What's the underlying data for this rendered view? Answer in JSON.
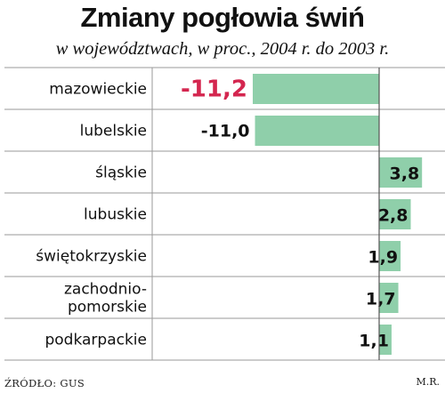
{
  "chart_data": {
    "type": "bar",
    "orientation": "horizontal",
    "title": "Zmiany pogłowia świń",
    "subtitle": "w województwach, w proc., 2004 r. do 2003 r.",
    "categories": [
      "mazowieckie",
      "lubelskie",
      "śląskie",
      "lubuskie",
      "świętokrzyskie",
      "zachodnio-pomorskie",
      "podkarpackie"
    ],
    "category_lines": [
      [
        "mazowieckie"
      ],
      [
        "lubelskie"
      ],
      [
        "śląskie"
      ],
      [
        "lubuskie"
      ],
      [
        "świętokrzyskie"
      ],
      [
        "zachodnio-",
        "pomorskie"
      ],
      [
        "podkarpackie"
      ]
    ],
    "values": [
      -11.2,
      -11.0,
      3.8,
      2.8,
      1.9,
      1.7,
      1.1
    ],
    "value_labels": [
      "-11,2",
      "-11,0",
      "3,8",
      "2,8",
      "1,9",
      "1,7",
      "1,1"
    ],
    "highlight_index": 0,
    "colors": {
      "bar": "#8fcfaa",
      "highlight_text": "#d4264f",
      "grid": "#9a9a9a"
    }
  },
  "footer": {
    "source": "ŹRÓDŁO: GUS",
    "author": "M.R."
  }
}
